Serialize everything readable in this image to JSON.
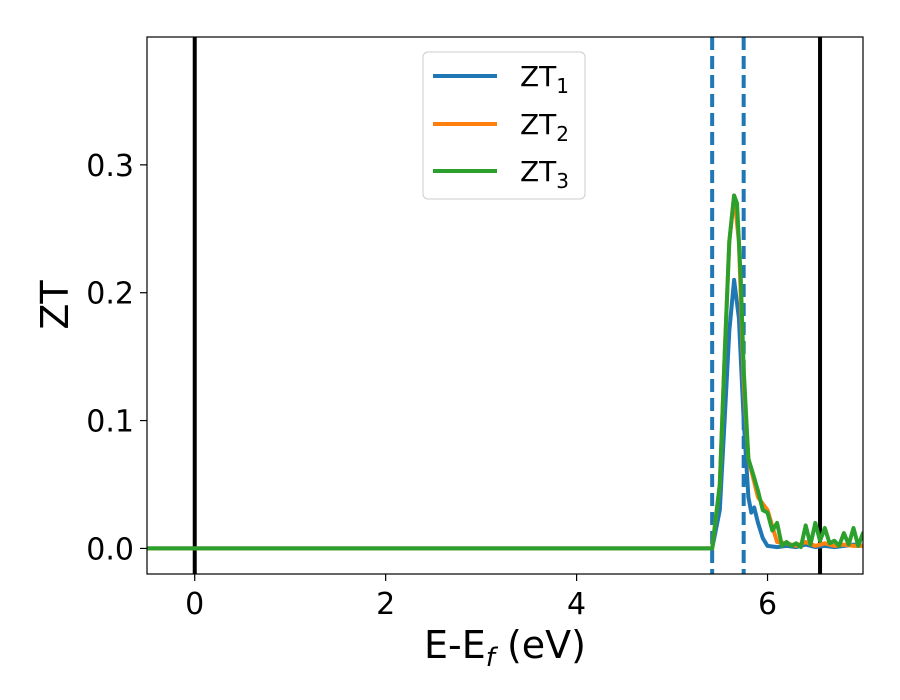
{
  "chart_data": {
    "type": "line",
    "xlabel_main": "E-E",
    "xlabel_sub": "f",
    "xlabel_unit": " (eV)",
    "ylabel": "ZT",
    "xlim": [
      -0.5,
      7.0
    ],
    "ylim": [
      -0.02,
      0.4
    ],
    "xticks": [
      0,
      2,
      4,
      6
    ],
    "xtick_labels": [
      "0",
      "2",
      "4",
      "6"
    ],
    "yticks": [
      0.0,
      0.1,
      0.2,
      0.3
    ],
    "ytick_labels": [
      "0.0",
      "0.1",
      "0.2",
      "0.3"
    ],
    "grid": false,
    "legend_position": "top-center",
    "vlines": [
      {
        "x": 0.0,
        "style": "solid",
        "color": "#000000"
      },
      {
        "x": 5.42,
        "style": "dashed",
        "color": "#1f77b4"
      },
      {
        "x": 5.75,
        "style": "dashed",
        "color": "#1f77b4"
      },
      {
        "x": 6.55,
        "style": "solid",
        "color": "#000000"
      }
    ],
    "series": [
      {
        "name": "ZT",
        "name_sub": "1",
        "color": "#1f77b4",
        "x": [
          -0.5,
          5.42,
          5.5,
          5.55,
          5.6,
          5.65,
          5.7,
          5.75,
          5.8,
          5.83,
          5.86,
          5.9,
          5.95,
          6.0,
          6.1,
          6.2,
          6.3,
          6.4,
          6.5,
          6.6,
          6.7,
          6.8,
          6.9,
          7.0
        ],
        "values": [
          0.0,
          0.0,
          0.03,
          0.1,
          0.17,
          0.21,
          0.18,
          0.1,
          0.04,
          0.028,
          0.032,
          0.02,
          0.008,
          0.002,
          0.001,
          0.002,
          0.001,
          0.003,
          0.001,
          0.002,
          0.001,
          0.002,
          0.003,
          0.002
        ]
      },
      {
        "name": "ZT",
        "name_sub": "2",
        "color": "#ff7f0e",
        "x": [
          -0.5,
          5.42,
          5.5,
          5.55,
          5.6,
          5.65,
          5.7,
          5.75,
          5.8,
          5.85,
          5.9,
          6.0,
          6.1,
          6.2,
          6.3,
          6.4,
          6.5,
          6.6,
          6.7,
          6.8,
          6.9,
          7.0
        ],
        "values": [
          0.0,
          0.0,
          0.05,
          0.15,
          0.24,
          0.276,
          0.24,
          0.13,
          0.07,
          0.055,
          0.04,
          0.03,
          0.005,
          0.004,
          0.002,
          0.005,
          0.002,
          0.004,
          0.002,
          0.003,
          0.002,
          0.002
        ]
      },
      {
        "name": "ZT",
        "name_sub": "3",
        "color": "#2ca02c",
        "x": [
          -0.5,
          5.42,
          5.5,
          5.55,
          5.6,
          5.65,
          5.68,
          5.72,
          5.75,
          5.8,
          5.85,
          5.9,
          5.95,
          6.0,
          6.05,
          6.1,
          6.15,
          6.2,
          6.25,
          6.3,
          6.35,
          6.4,
          6.45,
          6.5,
          6.55,
          6.6,
          6.65,
          6.7,
          6.75,
          6.8,
          6.85,
          6.9,
          6.95,
          7.0
        ],
        "values": [
          0.0,
          0.0,
          0.05,
          0.15,
          0.24,
          0.276,
          0.27,
          0.21,
          0.14,
          0.07,
          0.058,
          0.045,
          0.03,
          0.028,
          0.014,
          0.02,
          0.002,
          0.005,
          0.002,
          0.004,
          0.001,
          0.018,
          0.003,
          0.02,
          0.006,
          0.016,
          0.004,
          0.006,
          0.002,
          0.012,
          0.003,
          0.016,
          0.002,
          0.012
        ]
      }
    ]
  }
}
